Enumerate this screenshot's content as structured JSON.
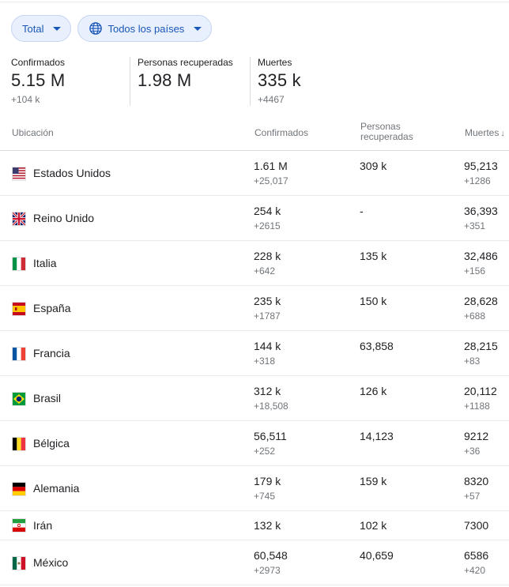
{
  "filters": {
    "total_label": "Total",
    "countries_label": "Todos los países"
  },
  "summary": {
    "confirmed": {
      "label": "Confirmados",
      "value": "5.15 M",
      "delta": "+104 k"
    },
    "recovered": {
      "label": "Personas recuperadas",
      "value": "1.98 M",
      "delta": ""
    },
    "deaths": {
      "label": "Muertes",
      "value": "335 k",
      "delta": "+4467"
    }
  },
  "table": {
    "headers": {
      "location": "Ubicación",
      "confirmed": "Confirmados",
      "recovered": "Personas recuperadas",
      "deaths": "Muertes",
      "sort_icon": "arrow-down-icon"
    },
    "rows": [
      {
        "country": "Estados Unidos",
        "flag": "us-flag-icon",
        "confirmed": "1.61 M",
        "confirmed_delta": "+25,017",
        "recovered": "309 k",
        "deaths": "95,213",
        "deaths_delta": "+1286"
      },
      {
        "country": "Reino Unido",
        "flag": "uk-flag-icon",
        "confirmed": "254 k",
        "confirmed_delta": "+2615",
        "recovered": "-",
        "deaths": "36,393",
        "deaths_delta": "+351"
      },
      {
        "country": "Italia",
        "flag": "italy-flag-icon",
        "confirmed": "228 k",
        "confirmed_delta": "+642",
        "recovered": "135 k",
        "deaths": "32,486",
        "deaths_delta": "+156"
      },
      {
        "country": "España",
        "flag": "spain-flag-icon",
        "confirmed": "235 k",
        "confirmed_delta": "+1787",
        "recovered": "150 k",
        "deaths": "28,628",
        "deaths_delta": "+688"
      },
      {
        "country": "Francia",
        "flag": "france-flag-icon",
        "confirmed": "144 k",
        "confirmed_delta": "+318",
        "recovered": "63,858",
        "deaths": "28,215",
        "deaths_delta": "+83"
      },
      {
        "country": "Brasil",
        "flag": "brazil-flag-icon",
        "confirmed": "312 k",
        "confirmed_delta": "+18,508",
        "recovered": "126 k",
        "deaths": "20,112",
        "deaths_delta": "+1188"
      },
      {
        "country": "Bélgica",
        "flag": "belgium-flag-icon",
        "confirmed": "56,511",
        "confirmed_delta": "+252",
        "recovered": "14,123",
        "deaths": "9212",
        "deaths_delta": "+36"
      },
      {
        "country": "Alemania",
        "flag": "germany-flag-icon",
        "confirmed": "179 k",
        "confirmed_delta": "+745",
        "recovered": "159 k",
        "deaths": "8320",
        "deaths_delta": "+57"
      },
      {
        "country": "Irán",
        "flag": "iran-flag-icon",
        "confirmed": "132 k",
        "confirmed_delta": "",
        "recovered": "102 k",
        "deaths": "7300",
        "deaths_delta": ""
      },
      {
        "country": "México",
        "flag": "mexico-flag-icon",
        "confirmed": "60,548",
        "confirmed_delta": "+2973",
        "recovered": "40,659",
        "deaths": "6586",
        "deaths_delta": "+420"
      }
    ]
  },
  "colors": {
    "chip_text": "#1a56b8",
    "chip_bg": "#e8f0fe",
    "secondary_text": "#70757a",
    "divider": "#dadce0"
  }
}
